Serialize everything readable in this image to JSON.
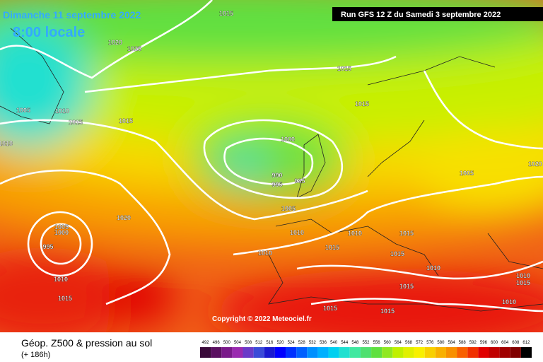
{
  "header": {
    "title": "Dimanche 11 septembre 2022",
    "time": "8:00 locale",
    "run": "Run GFS 12 Z du Samedi 3 septembre 2022"
  },
  "isobar_labels": [
    1015,
    1020,
    1025,
    1015,
    1005,
    1010,
    1015,
    1015,
    1015,
    1010,
    1000,
    990,
    995,
    985,
    1005,
    1020,
    1005,
    1020,
    1005,
    1000,
    995,
    1010,
    1010,
    1015,
    1015,
    1010,
    1015,
    1010,
    1010,
    1010,
    1015,
    1015,
    1015,
    1010,
    1015,
    1015
  ],
  "copyright": "Copyright © 2022 Meteociel.fr",
  "footer": {
    "title": "Géop. Z500 & pression au sol",
    "lead": "(+ 186h)"
  },
  "legend": {
    "ticks": [
      492,
      496,
      500,
      504,
      508,
      512,
      516,
      520,
      524,
      528,
      532,
      536,
      540,
      544,
      548,
      552,
      556,
      560,
      564,
      568,
      572,
      576,
      580,
      584,
      588,
      592,
      596,
      600,
      604,
      608,
      612
    ],
    "colors": [
      "#3a0a3a",
      "#5a1060",
      "#7a1a8a",
      "#9a2ab0",
      "#6a3ac8",
      "#3a4ad8",
      "#1a1ad0",
      "#0000ff",
      "#0030ff",
      "#0060ff",
      "#0090ff",
      "#00b0ff",
      "#00d0f0",
      "#20e0d0",
      "#40e8a0",
      "#50e070",
      "#60e040",
      "#90e820",
      "#c0f000",
      "#e0f000",
      "#f8f000",
      "#f8d000",
      "#f8b000",
      "#f89000",
      "#f86000",
      "#f03000",
      "#e00000",
      "#c00000",
      "#a00000",
      "#800000",
      "#000000"
    ]
  }
}
